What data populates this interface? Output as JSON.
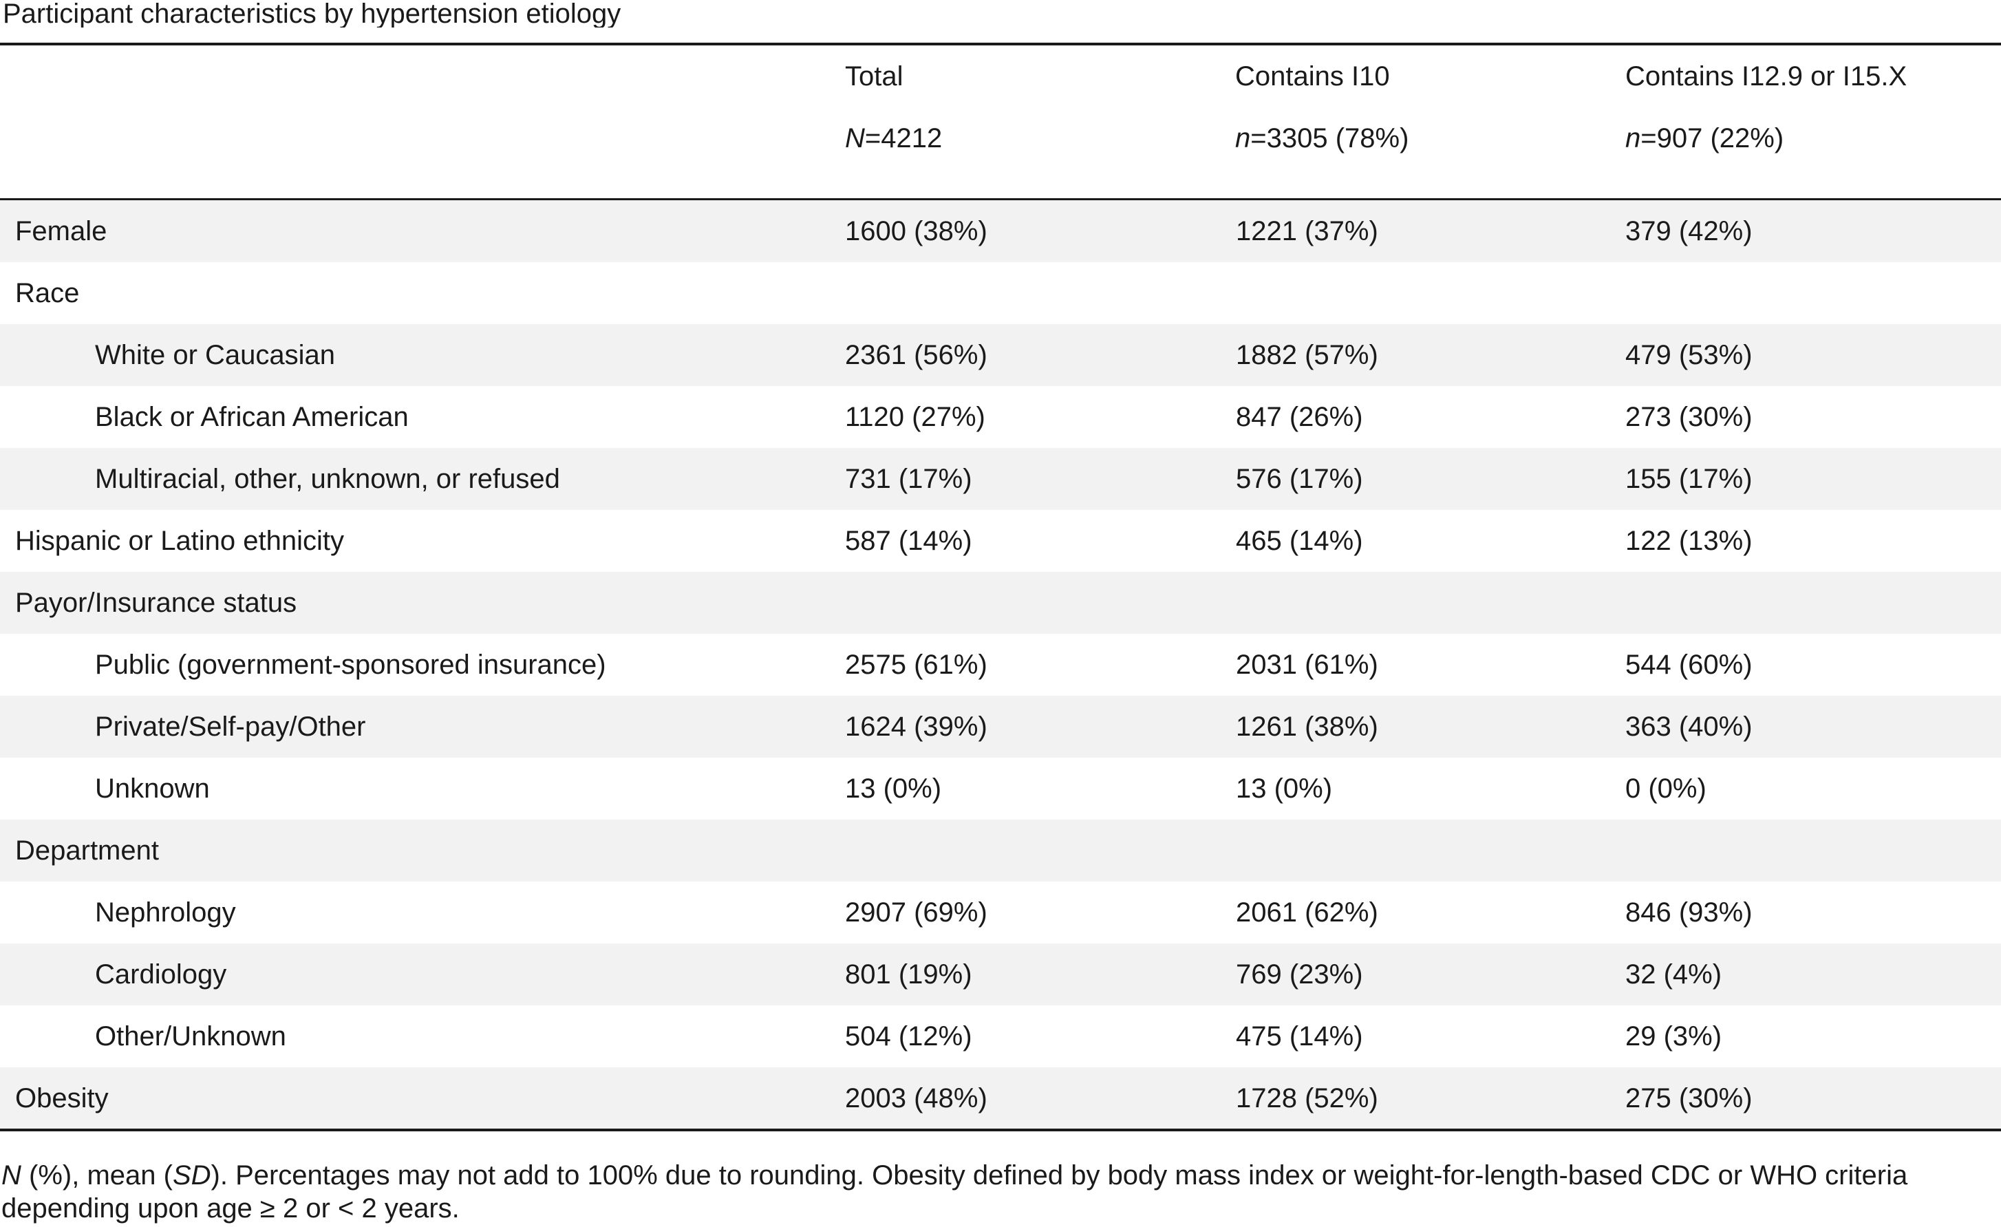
{
  "caption": "Participant characteristics by hypertension etiology",
  "columns": [
    {
      "label": "Total",
      "n_prefix": "N",
      "n_value": "=4212"
    },
    {
      "label": "Contains I10",
      "n_prefix": "n",
      "n_value": "=3305 (78%)"
    },
    {
      "label": "Contains I12.9 or I15.X",
      "n_prefix": "n",
      "n_value": "=907 (22%)"
    }
  ],
  "rows": [
    {
      "label": "Female",
      "indent": false,
      "values": [
        "1600 (38%)",
        "1221 (37%)",
        "379 (42%)"
      ]
    },
    {
      "label": "Race",
      "indent": false,
      "values": [
        "",
        "",
        ""
      ]
    },
    {
      "label": "White or Caucasian",
      "indent": true,
      "values": [
        "2361 (56%)",
        "1882 (57%)",
        "479 (53%)"
      ]
    },
    {
      "label": "Black or African American",
      "indent": true,
      "values": [
        "1120 (27%)",
        "847 (26%)",
        "273 (30%)"
      ]
    },
    {
      "label": "Multiracial, other, unknown, or refused",
      "indent": true,
      "values": [
        "731 (17%)",
        "576 (17%)",
        "155 (17%)"
      ]
    },
    {
      "label": "Hispanic or Latino ethnicity",
      "indent": false,
      "values": [
        "587 (14%)",
        "465 (14%)",
        "122 (13%)"
      ]
    },
    {
      "label": "Payor/Insurance status",
      "indent": false,
      "values": [
        "",
        "",
        ""
      ]
    },
    {
      "label": "Public (government-sponsored insurance)",
      "indent": true,
      "values": [
        "2575 (61%)",
        "2031 (61%)",
        "544 (60%)"
      ]
    },
    {
      "label": "Private/Self-pay/Other",
      "indent": true,
      "values": [
        "1624 (39%)",
        "1261 (38%)",
        "363 (40%)"
      ]
    },
    {
      "label": "Unknown",
      "indent": true,
      "values": [
        "13 (0%)",
        "13 (0%)",
        "0 (0%)"
      ]
    },
    {
      "label": "Department",
      "indent": false,
      "values": [
        "",
        "",
        ""
      ]
    },
    {
      "label": "Nephrology",
      "indent": true,
      "values": [
        "2907 (69%)",
        "2061 (62%)",
        "846 (93%)"
      ]
    },
    {
      "label": "Cardiology",
      "indent": true,
      "values": [
        "801 (19%)",
        "769 (23%)",
        "32 (4%)"
      ]
    },
    {
      "label": "Other/Unknown",
      "indent": true,
      "values": [
        "504 (12%)",
        "475 (14%)",
        "29 (3%)"
      ]
    },
    {
      "label": "Obesity",
      "indent": false,
      "values": [
        "2003 (48%)",
        "1728 (52%)",
        "275 (30%)"
      ]
    }
  ],
  "footnote": {
    "n_symbol": "N",
    "part1": " (%), mean (",
    "sd_symbol": "SD",
    "part2": "). Percentages may not add to 100% due to rounding. Obesity defined by body mass index or weight-for-length-based CDC or WHO criteria depending upon age ≥ 2 or < 2 years."
  }
}
